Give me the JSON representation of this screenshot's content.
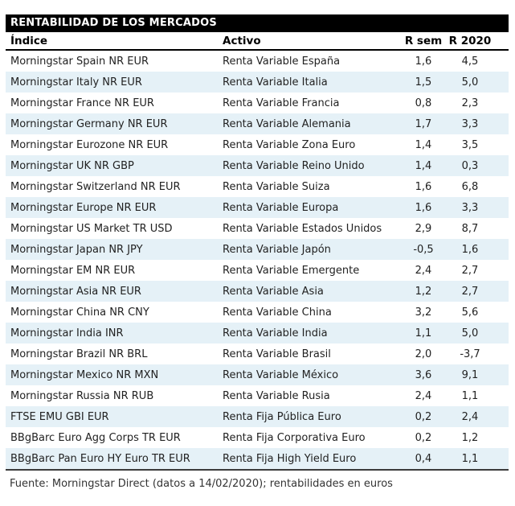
{
  "table": {
    "title": "RENTABILIDAD DE LOS MERCADOS",
    "columns": {
      "indice": "Índice",
      "activo": "Activo",
      "r_sem": "R sem",
      "r_2020": "R 2020"
    },
    "rows": [
      {
        "indice": "Morningstar Spain NR EUR",
        "activo": "Renta Variable España",
        "r_sem": "1,6",
        "r_2020": "4,5"
      },
      {
        "indice": "Morningstar Italy NR EUR",
        "activo": "Renta Variable Italia",
        "r_sem": "1,5",
        "r_2020": "5,0"
      },
      {
        "indice": "Morningstar France NR EUR",
        "activo": "Renta Variable Francia",
        "r_sem": "0,8",
        "r_2020": "2,3"
      },
      {
        "indice": "Morningstar Germany NR EUR",
        "activo": "Renta Variable Alemania",
        "r_sem": "1,7",
        "r_2020": "3,3"
      },
      {
        "indice": "Morningstar Eurozone NR EUR",
        "activo": "Renta Variable Zona Euro",
        "r_sem": "1,4",
        "r_2020": "3,5"
      },
      {
        "indice": "Morningstar UK NR GBP",
        "activo": "Renta Variable Reino Unido",
        "r_sem": "1,4",
        "r_2020": "0,3"
      },
      {
        "indice": "Morningstar Switzerland NR EUR",
        "activo": "Renta Variable Suiza",
        "r_sem": "1,6",
        "r_2020": "6,8"
      },
      {
        "indice": "Morningstar Europe NR EUR",
        "activo": "Renta Variable Europa",
        "r_sem": "1,6",
        "r_2020": "3,3"
      },
      {
        "indice": "Morningstar US Market TR USD",
        "activo": "Renta Variable Estados Unidos",
        "r_sem": "2,9",
        "r_2020": "8,7"
      },
      {
        "indice": "Morningstar Japan NR JPY",
        "activo": "Renta Variable Japón",
        "r_sem": "-0,5",
        "r_2020": "1,6"
      },
      {
        "indice": "Morningstar EM NR EUR",
        "activo": "Renta Variable Emergente",
        "r_sem": "2,4",
        "r_2020": "2,7"
      },
      {
        "indice": "Morningstar Asia NR EUR",
        "activo": "Renta Variable Asia",
        "r_sem": "1,2",
        "r_2020": "2,7"
      },
      {
        "indice": "Morningstar China NR CNY",
        "activo": "Renta Variable China",
        "r_sem": "3,2",
        "r_2020": "5,6"
      },
      {
        "indice": "Morningstar India INR",
        "activo": "Renta Variable India",
        "r_sem": "1,1",
        "r_2020": "5,0"
      },
      {
        "indice": "Morningstar Brazil NR BRL",
        "activo": "Renta Variable Brasil",
        "r_sem": "2,0",
        "r_2020": "-3,7"
      },
      {
        "indice": "Morningstar Mexico NR MXN",
        "activo": "Renta Variable México",
        "r_sem": "3,6",
        "r_2020": "9,1"
      },
      {
        "indice": "Morningstar Russia NR RUB",
        "activo": "Renta Variable Rusia",
        "r_sem": "2,4",
        "r_2020": "1,1"
      },
      {
        "indice": "FTSE EMU GBI EUR",
        "activo": "Renta Fija Pública Euro",
        "r_sem": "0,2",
        "r_2020": "2,4"
      },
      {
        "indice": "BBgBarc Euro Agg Corps TR EUR",
        "activo": "Renta Fija Corporativa Euro",
        "r_sem": "0,2",
        "r_2020": "1,2"
      },
      {
        "indice": "BBgBarc Pan Euro HY Euro TR EUR",
        "activo": "Renta Fija High Yield Euro",
        "r_sem": "0,4",
        "r_2020": "1,1"
      }
    ],
    "footer": "Fuente: Morningstar Direct (datos a 14/02/2020); rentabilidades en euros"
  },
  "colors": {
    "title_bg": "#000000",
    "title_text": "#ffffff",
    "stripe_blue": "#e5f1f7",
    "body_text": "#222222",
    "header_border": "#000000",
    "bottom_border": "#3c3c3c"
  }
}
